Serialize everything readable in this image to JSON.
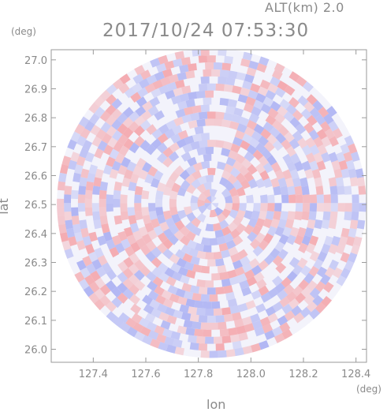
{
  "header": {
    "altitude_label": "ALT(km) 2.0",
    "datetime_label": "2017/10/24 07:53:30"
  },
  "axes": {
    "x_unit": "(deg)",
    "y_unit": "(deg)",
    "x_title": "lon",
    "y_title": "lat"
  },
  "chart_data": {
    "type": "heatmap",
    "title": "2017/10/24 07:53:30",
    "subtitle": "ALT(km) 2.0",
    "xlabel": "lon",
    "ylabel": "lat",
    "x_unit": "(deg)",
    "y_unit": "(deg)",
    "xlim": [
      127.24,
      128.44
    ],
    "ylim": [
      25.955,
      27.035
    ],
    "x_ticks": [
      127.4,
      127.6,
      127.8,
      128.0,
      128.2,
      128.4
    ],
    "x_tick_labels": [
      "127.4",
      "127.6",
      "127.8",
      "128.0",
      "128.2",
      "128.4"
    ],
    "y_ticks": [
      26.0,
      26.1,
      26.2,
      26.3,
      26.4,
      26.5,
      26.6,
      26.7,
      26.8,
      26.9,
      27.0
    ],
    "y_tick_labels": [
      "26.0",
      "26.1",
      "26.2",
      "26.3",
      "26.4",
      "26.5",
      "26.6",
      "26.7",
      "26.8",
      "26.9",
      "27.0"
    ],
    "center": {
      "lon": 127.85,
      "lat": 26.505
    },
    "radius_deg_lat": 0.535,
    "grid": false,
    "legend": "none",
    "colors": {
      "positive": "#f4a3a8",
      "negative": "#a8aef2",
      "neutral": "#f3f3fb",
      "frame": "#9a9a9a"
    }
  }
}
